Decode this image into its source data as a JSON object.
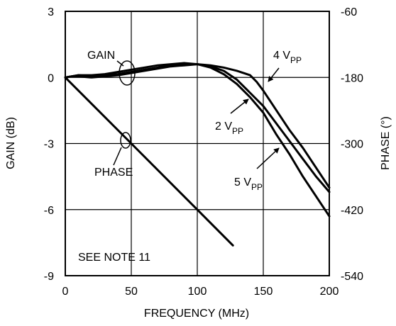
{
  "chart_data": {
    "type": "line",
    "xlabel": "FREQUENCY (MHz)",
    "ylabel_left": "GAIN (dB)",
    "ylabel_right": "PHASE (°)",
    "xlim": [
      0,
      200
    ],
    "ylim_left": [
      -9,
      3
    ],
    "ylim_right": [
      -540,
      -60
    ],
    "x_ticks": [
      "0",
      "50",
      "100",
      "150",
      "200"
    ],
    "y_ticks_left": [
      "3",
      "0",
      "-3",
      "-6",
      "-9"
    ],
    "y_ticks_right": [
      "-60",
      "-180",
      "-300",
      "-420",
      "-540"
    ],
    "grid": true,
    "series": [
      {
        "name": "2 VPP",
        "axis": "left",
        "x": [
          0,
          5,
          10,
          20,
          30,
          40,
          50,
          60,
          70,
          80,
          90,
          100,
          110,
          120,
          130,
          140,
          150,
          160,
          170,
          180,
          190,
          200
        ],
        "y": [
          0,
          0.05,
          0.1,
          0.05,
          0.1,
          0.15,
          0.25,
          0.35,
          0.45,
          0.55,
          0.6,
          0.6,
          0.5,
          0.3,
          -0.1,
          -0.7,
          -1.3,
          -2.1,
          -2.9,
          -3.7,
          -4.5,
          -5.2
        ]
      },
      {
        "name": "4 VPP",
        "axis": "left",
        "x": [
          0,
          5,
          10,
          20,
          30,
          40,
          50,
          60,
          70,
          80,
          90,
          100,
          110,
          120,
          130,
          140,
          145,
          150,
          160,
          170,
          180,
          190,
          200
        ],
        "y": [
          0,
          0.05,
          0.05,
          0.0,
          0.05,
          0.1,
          0.2,
          0.3,
          0.4,
          0.5,
          0.55,
          0.6,
          0.55,
          0.45,
          0.3,
          0.1,
          -0.2,
          -0.6,
          -1.5,
          -2.4,
          -3.2,
          -4.1,
          -5.0
        ]
      },
      {
        "name": "5 VPP",
        "axis": "left",
        "x": [
          0,
          5,
          10,
          20,
          30,
          40,
          50,
          60,
          70,
          80,
          90,
          100,
          110,
          120,
          130,
          140,
          150,
          160,
          170,
          180,
          190,
          200
        ],
        "y": [
          0,
          0.05,
          0.1,
          0.1,
          0.15,
          0.25,
          0.35,
          0.45,
          0.55,
          0.6,
          0.65,
          0.6,
          0.45,
          0.15,
          -0.3,
          -0.9,
          -1.6,
          -2.6,
          -3.5,
          -4.5,
          -5.4,
          -6.3
        ]
      },
      {
        "name": "PHASE",
        "axis": "right",
        "x": [
          0,
          50,
          100,
          127
        ],
        "y": [
          -180,
          -300,
          -420,
          -485
        ]
      }
    ],
    "annotations": [
      {
        "text": "GAIN"
      },
      {
        "text": "PHASE"
      },
      {
        "text": "4 V",
        "sub": "PP"
      },
      {
        "text": "2 V",
        "sub": "PP"
      },
      {
        "text": "5 V",
        "sub": "PP"
      },
      {
        "text": "SEE NOTE 11"
      }
    ]
  }
}
